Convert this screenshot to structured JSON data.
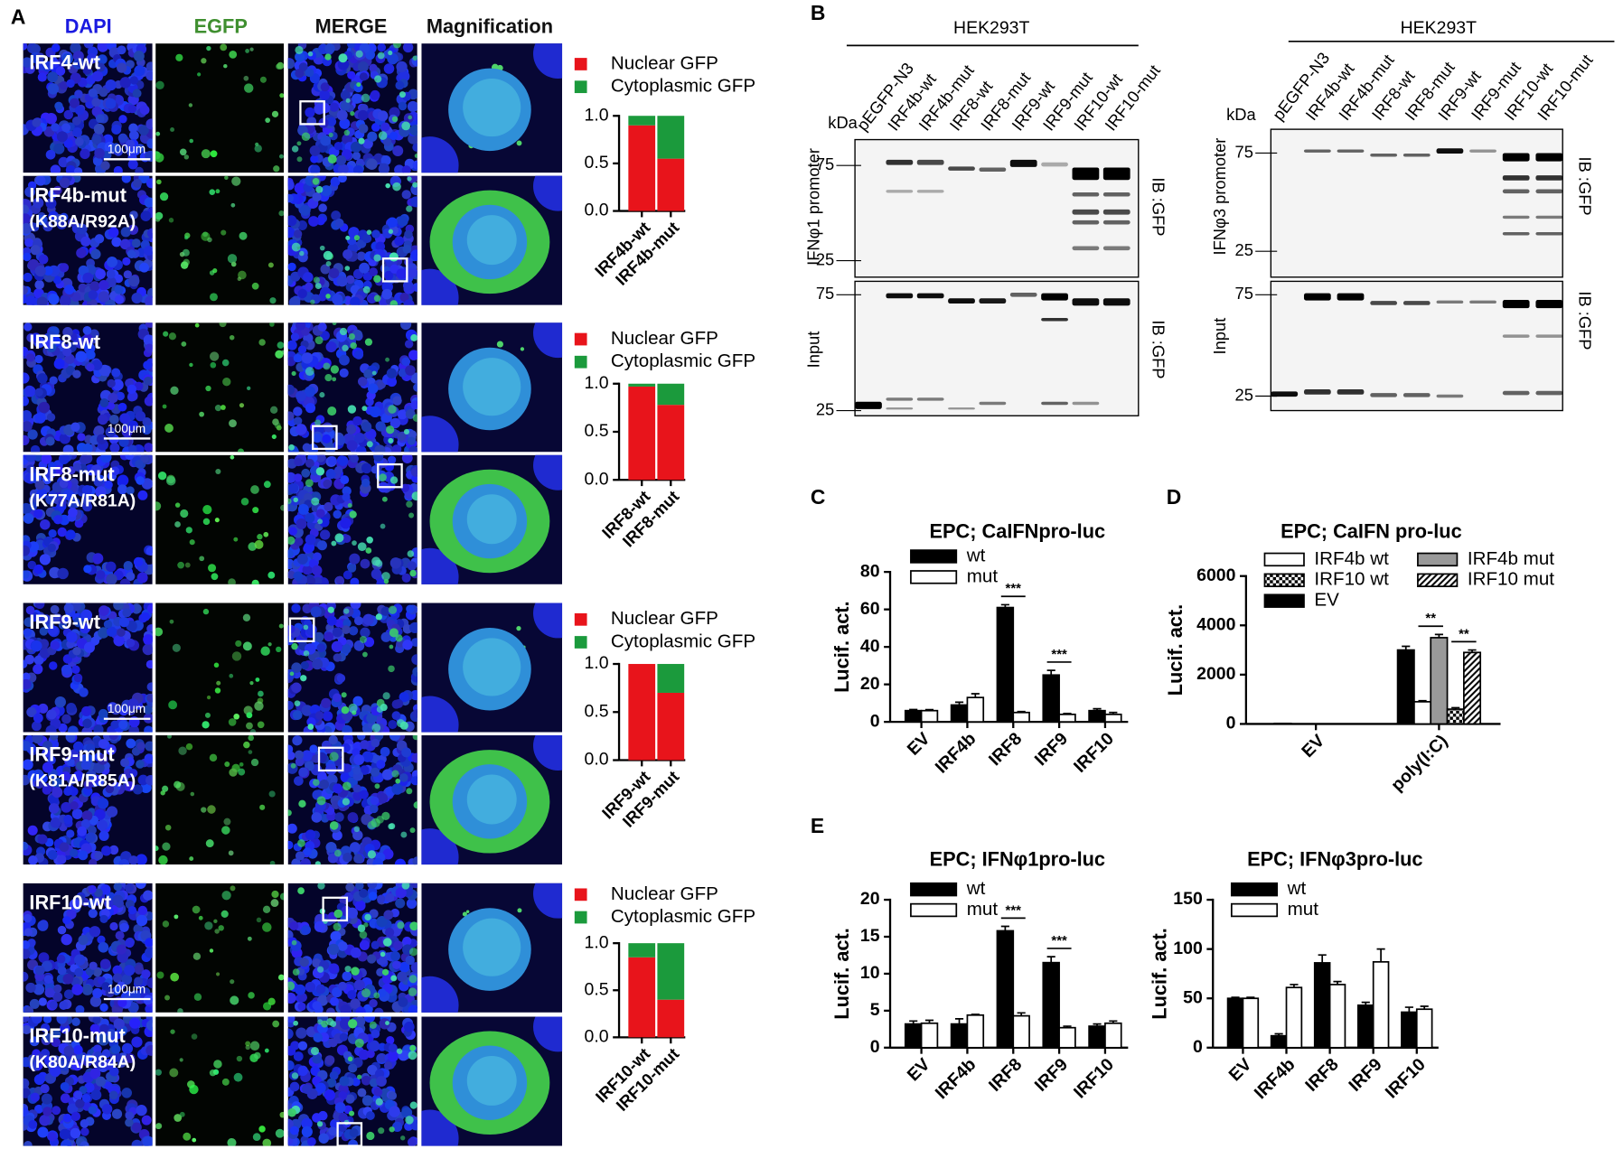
{
  "panel_letters": [
    "A",
    "B",
    "C",
    "D",
    "E"
  ],
  "microscopy": {
    "columns": [
      "DAPI",
      "EGFP",
      "MERGE",
      "Magnification"
    ],
    "scale_bar": "100μm",
    "rows": [
      {
        "label": "IRF4-wt"
      },
      {
        "label": "IRF4b-mut",
        "sub": "(K88A/R92A)"
      },
      {
        "label": "IRF8-wt"
      },
      {
        "label": "IRF8-mut",
        "sub": "(K77A/R81A)"
      },
      {
        "label": "IRF9-wt"
      },
      {
        "label": "IRF9-mut",
        "sub": "(K81A/R85A)"
      },
      {
        "label": "IRF10-wt"
      },
      {
        "label": "IRF10-mut",
        "sub": "(K80A/R84A)"
      }
    ]
  },
  "blots": [
    {
      "cell_line": "HEK293T",
      "unit": "kDa",
      "promoter_label": "IFNφ1 promoter",
      "input_label": "Input",
      "ib_label": "IB :GFP",
      "lanes": [
        "pEGFP-N3",
        "IRF4b-wt",
        "IRF4b-mut",
        "IRF8-wt",
        "IRF8-mut",
        "IRF9-wt",
        "IRF9-mut",
        "IRF10-wt",
        "IRF10-mut"
      ],
      "markers_top": [
        75,
        25
      ],
      "markers_bottom": [
        75,
        25
      ]
    },
    {
      "cell_line": "HEK293T",
      "unit": "kDa",
      "promoter_label": "IFNφ3 promoter",
      "input_label": "Input",
      "ib_label": "IB :GFP",
      "lanes": [
        "pEGFP-N3",
        "IRF4b-wt",
        "IRF4b-mut",
        "IRF8-wt",
        "IRF8-mut",
        "IRF9-wt",
        "IRF9-mut",
        "IRF10-wt",
        "IRF10-mut"
      ],
      "markers_top": [
        75,
        25
      ],
      "markers_bottom": [
        75,
        25
      ]
    }
  ],
  "chart_data": [
    {
      "type": "bar",
      "stacked": true,
      "categories": [
        "IRF4b-wt",
        "IRF4b-mut"
      ],
      "series": [
        {
          "name": "Nuclear GFP",
          "color": "#e8141b",
          "values": [
            0.9,
            0.55
          ]
        },
        {
          "name": "Cytoplasmic GFP",
          "color": "#1b9a3c",
          "values": [
            0.1,
            0.45
          ]
        }
      ],
      "ylim": [
        0,
        1
      ],
      "yticks": [
        {
          "value": 0,
          "label": "0.0"
        },
        {
          "value": 0.5,
          "label": "0.5"
        },
        {
          "value": 1,
          "label": "1.0"
        }
      ]
    },
    {
      "type": "bar",
      "stacked": true,
      "categories": [
        "IRF8-wt",
        "IRF8-mut"
      ],
      "series": [
        {
          "name": "Nuclear GFP",
          "color": "#e8141b",
          "values": [
            0.97,
            0.78
          ]
        },
        {
          "name": "Cytoplasmic GFP",
          "color": "#1b9a3c",
          "values": [
            0.03,
            0.22
          ]
        }
      ],
      "ylim": [
        0,
        1
      ],
      "yticks": [
        {
          "value": 0,
          "label": "0.0"
        },
        {
          "value": 0.5,
          "label": "0.5"
        },
        {
          "value": 1,
          "label": "1.0"
        }
      ]
    },
    {
      "type": "bar",
      "stacked": true,
      "categories": [
        "IRF9-wt",
        "IRF9-mut"
      ],
      "series": [
        {
          "name": "Nuclear GFP",
          "color": "#e8141b",
          "values": [
            1.0,
            0.7
          ]
        },
        {
          "name": "Cytoplasmic GFP",
          "color": "#1b9a3c",
          "values": [
            0,
            0.3
          ]
        }
      ],
      "ylim": [
        0,
        1
      ],
      "yticks": [
        {
          "value": 0,
          "label": "0.0"
        },
        {
          "value": 0.5,
          "label": "0.5"
        },
        {
          "value": 1,
          "label": "1.0"
        }
      ]
    },
    {
      "type": "bar",
      "stacked": true,
      "categories": [
        "IRF10-wt",
        "IRF10-mut"
      ],
      "series": [
        {
          "name": "Nuclear GFP",
          "color": "#e8141b",
          "values": [
            0.85,
            0.4
          ]
        },
        {
          "name": "Cytoplasmic GFP",
          "color": "#1b9a3c",
          "values": [
            0.15,
            0.6
          ]
        }
      ],
      "ylim": [
        0,
        1
      ],
      "yticks": [
        {
          "value": 0,
          "label": "0.0"
        },
        {
          "value": 0.5,
          "label": "0.5"
        },
        {
          "value": 1,
          "label": "1.0"
        }
      ]
    },
    {
      "type": "bar",
      "title": "EPC; CaIFNpro-luc",
      "y_label": "Lucif. act.",
      "categories": [
        "EV",
        "IRF4b",
        "IRF8",
        "IRF9",
        "IRF10"
      ],
      "series": [
        {
          "name": "wt",
          "color": "#000000",
          "values": [
            6,
            9,
            61,
            25,
            6
          ],
          "errors": [
            0.6,
            1.5,
            1.5,
            2.5,
            1
          ]
        },
        {
          "name": "mut",
          "color": "#ffffff",
          "values": [
            6,
            13,
            5,
            4,
            4
          ],
          "errors": [
            0.5,
            2,
            0.5,
            0.5,
            1
          ]
        }
      ],
      "ylim": [
        0,
        80
      ],
      "yticks": [
        0,
        20,
        40,
        60,
        80
      ],
      "annotations": [
        {
          "text": "***",
          "x": "IRF8",
          "between": [
            "wt",
            "mut"
          ]
        },
        {
          "text": "***",
          "x": "IRF9",
          "between": [
            "wt",
            "mut"
          ]
        }
      ]
    },
    {
      "type": "bar",
      "title": "EPC; CaIFN pro-luc",
      "y_label": "Lucif. act.",
      "categories": [
        "EV",
        "poly(I:C)"
      ],
      "series": [
        {
          "name": "IRF4b wt",
          "color": "#ffffff",
          "values": [
            0,
            900
          ],
          "errors": [
            0,
            40
          ]
        },
        {
          "name": "IRF4b mut",
          "color": "#999999",
          "values": [
            0,
            3500
          ],
          "errors": [
            0,
            130
          ]
        },
        {
          "name": "IRF10 wt",
          "color": "#000000",
          "pattern": "checker",
          "values": [
            0,
            600
          ],
          "errors": [
            0,
            60
          ]
        },
        {
          "name": "IRF10 mut",
          "color": "#000000",
          "pattern": "hatch",
          "values": [
            0,
            2900
          ],
          "errors": [
            0,
            100
          ]
        },
        {
          "name": "EV",
          "color": "#000000",
          "values": [
            20,
            3000
          ],
          "errors": [
            0,
            150
          ]
        }
      ],
      "ylim": [
        0,
        6000
      ],
      "yticks": [
        0,
        2000,
        4000,
        6000
      ],
      "annotations": [
        {
          "text": "**",
          "x": "poly(I:C)",
          "between": [
            "IRF4b wt",
            "IRF4b mut"
          ]
        },
        {
          "text": "**",
          "x": "poly(I:C)",
          "between": [
            "IRF10 wt",
            "IRF10 mut"
          ]
        }
      ]
    },
    {
      "type": "bar",
      "title": "EPC; IFNφ1pro-luc",
      "y_label": "Lucif. act.",
      "categories": [
        "EV",
        "IRF4b",
        "IRF8",
        "IRF9",
        "IRF10"
      ],
      "series": [
        {
          "name": "wt",
          "color": "#000000",
          "values": [
            3.2,
            3.2,
            15.8,
            11.5,
            2.9
          ],
          "errors": [
            0.4,
            0.7,
            0.6,
            0.8,
            0.3
          ]
        },
        {
          "name": "mut",
          "color": "#ffffff",
          "values": [
            3.3,
            4.4,
            4.3,
            2.7,
            3.3
          ],
          "errors": [
            0.4,
            0.1,
            0.4,
            0.2,
            0.3
          ]
        }
      ],
      "ylim": [
        0,
        20
      ],
      "yticks": [
        0,
        5,
        10,
        15,
        20
      ],
      "annotations": [
        {
          "text": "***",
          "x": "IRF8",
          "between": [
            "wt",
            "mut"
          ]
        },
        {
          "text": "***",
          "x": "IRF9",
          "between": [
            "wt",
            "mut"
          ]
        }
      ]
    },
    {
      "type": "bar",
      "title": "EPC; IFNφ3pro-luc",
      "y_label": "Lucif. act.",
      "categories": [
        "EV",
        "IRF4b",
        "IRF8",
        "IRF9",
        "IRF10"
      ],
      "series": [
        {
          "name": "wt",
          "color": "#000000",
          "values": [
            50,
            12,
            86,
            43,
            36
          ],
          "errors": [
            1,
            2,
            8,
            3,
            5
          ]
        },
        {
          "name": "mut",
          "color": "#ffffff",
          "values": [
            50,
            61,
            64,
            87,
            39
          ],
          "errors": [
            1,
            3,
            3,
            13,
            3
          ]
        }
      ],
      "ylim": [
        0,
        150
      ],
      "yticks": [
        0,
        50,
        100,
        150
      ]
    }
  ]
}
